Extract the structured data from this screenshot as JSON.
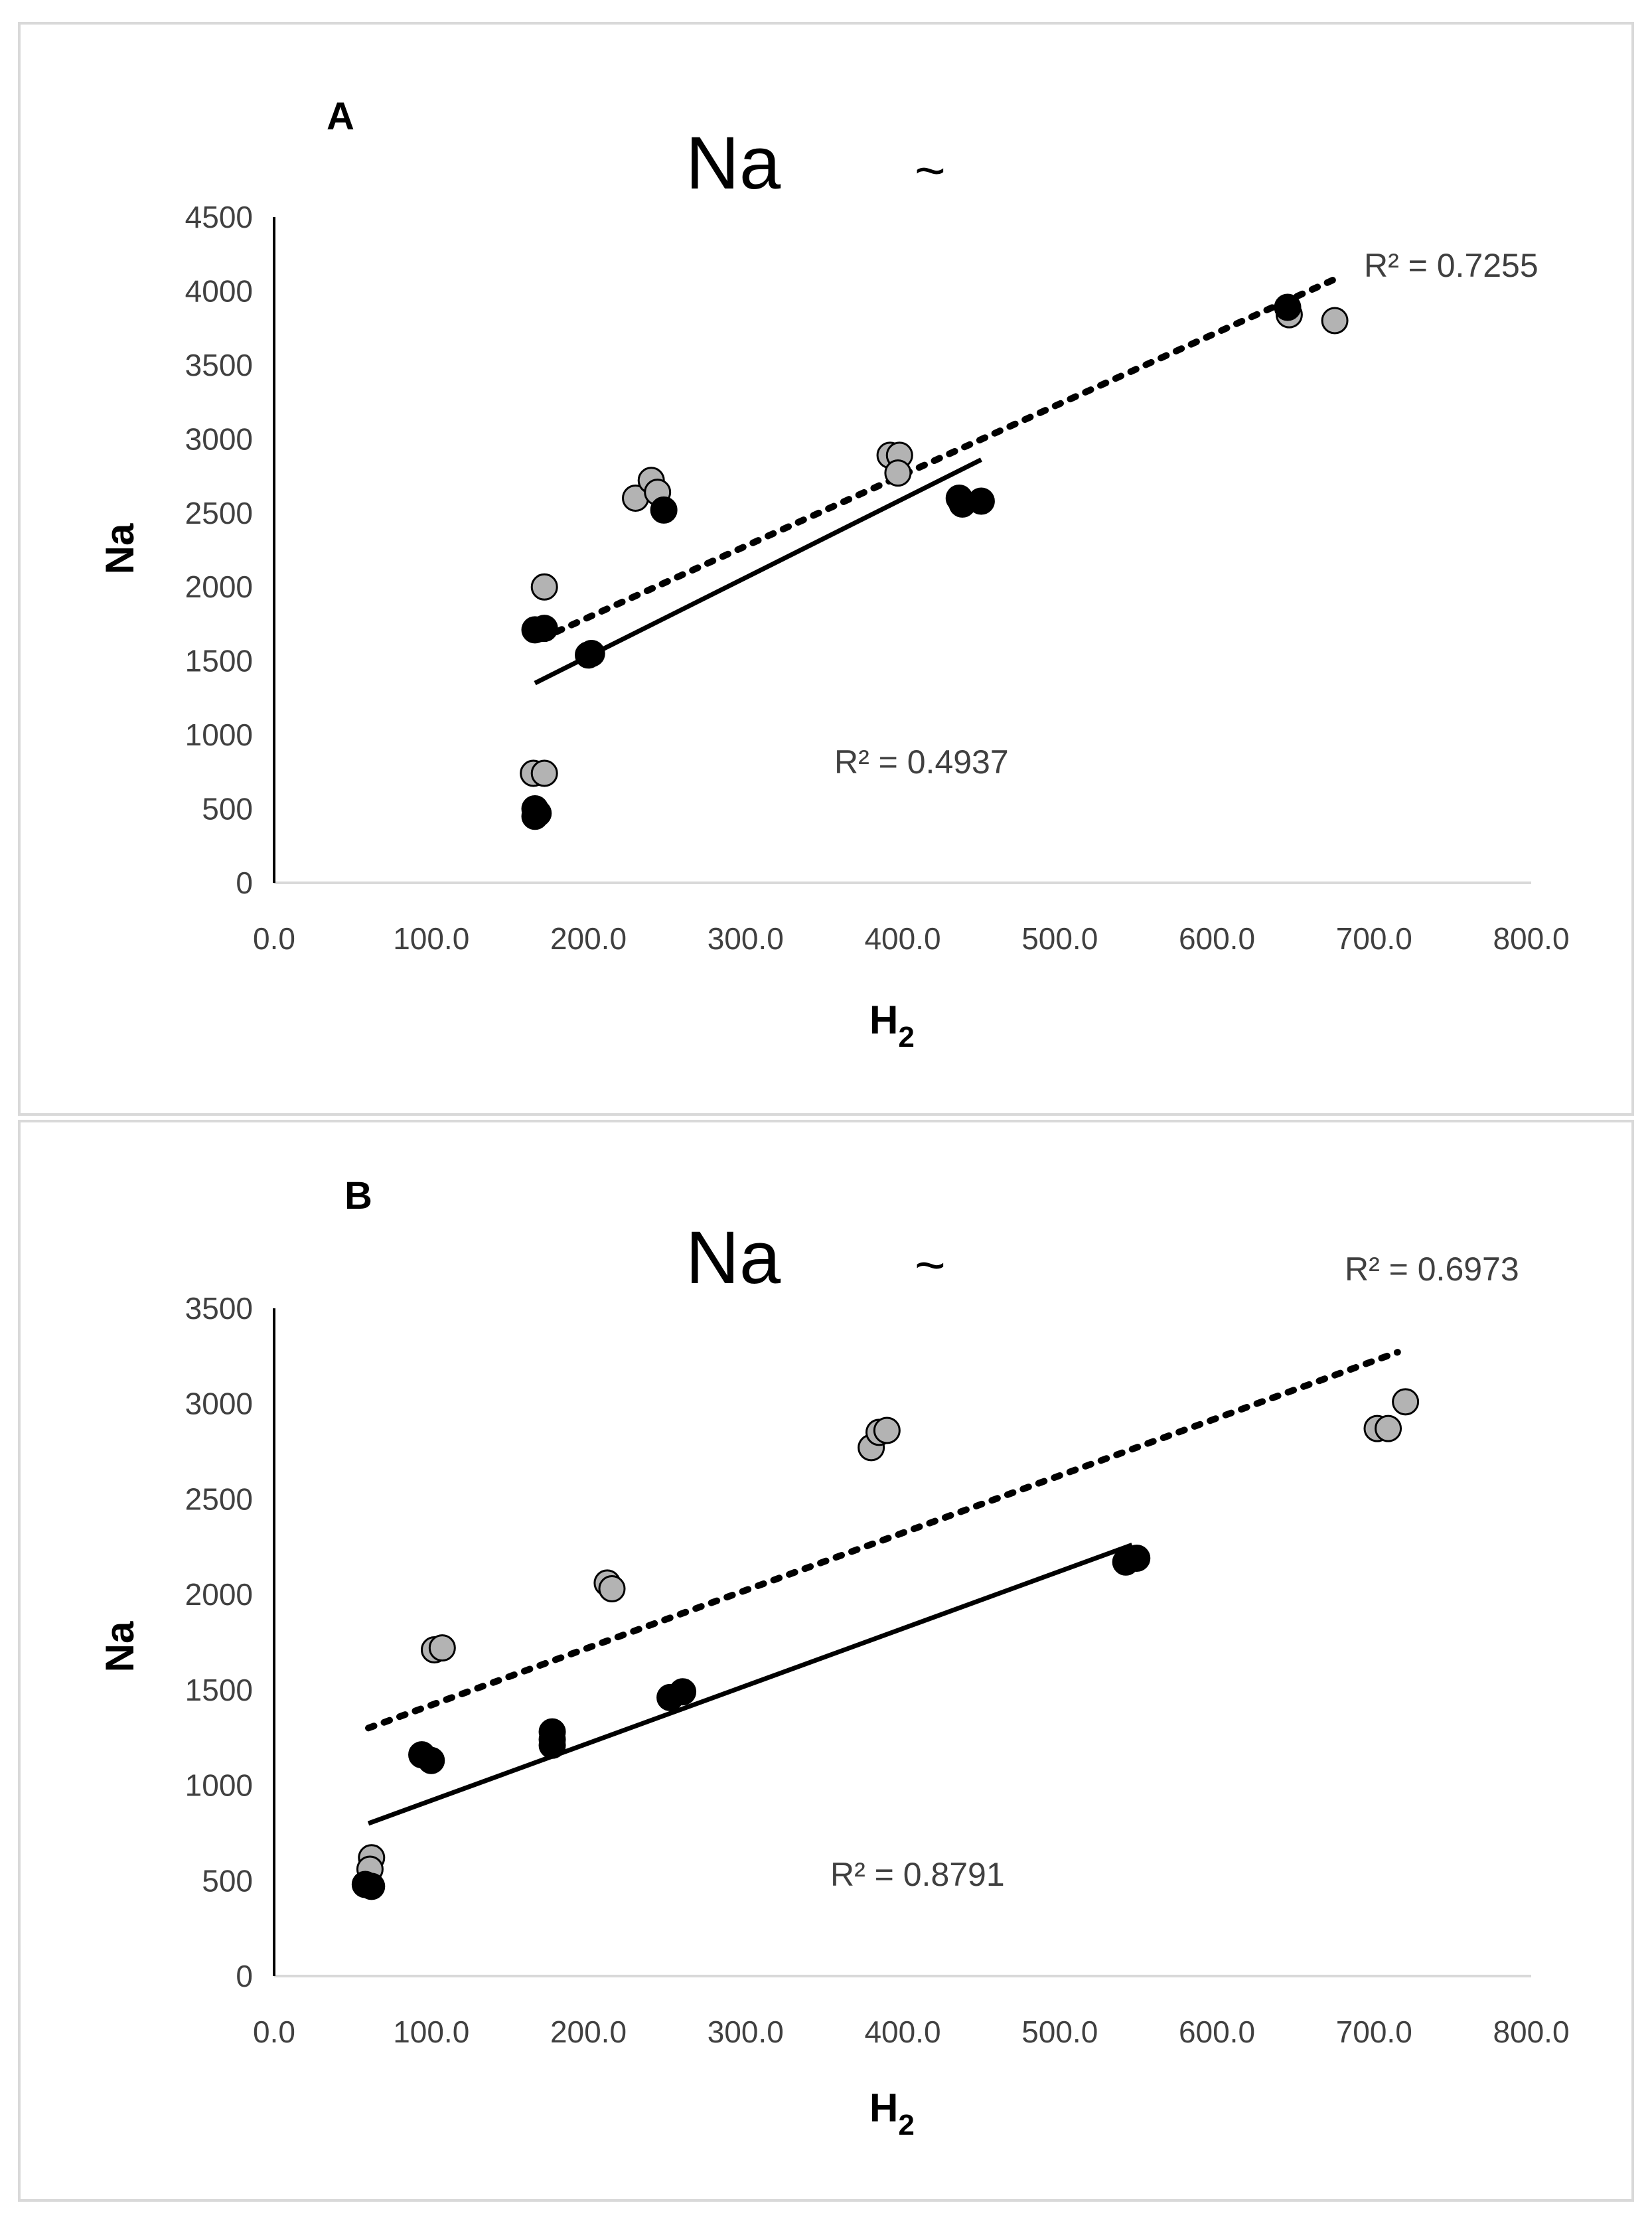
{
  "panels": [
    {
      "label": "A",
      "title": "Na",
      "title_suffix": "~",
      "xlabel": "H2",
      "ylabel": "Na",
      "x_ticks": [
        "0.0",
        "100.0",
        "200.0",
        "300.0",
        "400.0",
        "500.0",
        "600.0",
        "700.0",
        "800.0"
      ],
      "y_ticks": [
        "0",
        "500",
        "1000",
        "1500",
        "2000",
        "2500",
        "3000",
        "3500",
        "4000",
        "4500"
      ],
      "r2_dotted": "R² = 0.7255",
      "r2_solid": "R² = 0.4937"
    },
    {
      "label": "B",
      "title": "Na",
      "title_suffix": "~",
      "xlabel": "H2",
      "ylabel": "Na",
      "x_ticks": [
        "0.0",
        "100.0",
        "200.0",
        "300.0",
        "400.0",
        "500.0",
        "600.0",
        "700.0",
        "800.0"
      ],
      "y_ticks": [
        "0",
        "500",
        "1000",
        "1500",
        "2000",
        "2500",
        "3000",
        "3500"
      ],
      "r2_dotted": "R² = 0.6973",
      "r2_solid": "R² = 0.8791"
    }
  ],
  "chart_data": [
    {
      "type": "scatter",
      "title": "Na ~",
      "panel": "A",
      "xlabel": "H2",
      "ylabel": "Na",
      "xlim": [
        0,
        800
      ],
      "ylim": [
        0,
        4500
      ],
      "grid": false,
      "series": [
        {
          "name": "gray points",
          "color": "#b3b3b3",
          "trendline": "dotted",
          "r2": 0.7255,
          "trend_start": [
            170,
            1650
          ],
          "trend_end": [
            675,
            4080
          ],
          "points": [
            [
              172,
              2000
            ],
            [
              165,
              740
            ],
            [
              172,
              740
            ],
            [
              230,
              2600
            ],
            [
              240,
              2720
            ],
            [
              244,
              2640
            ],
            [
              392,
              2890
            ],
            [
              398,
              2890
            ],
            [
              397,
              2770
            ],
            [
              646,
              3840
            ],
            [
              675,
              3800
            ]
          ]
        },
        {
          "name": "black points",
          "color": "#000000",
          "trendline": "solid",
          "r2": 0.4937,
          "trend_start": [
            166,
            1350
          ],
          "trend_end": [
            450,
            2860
          ],
          "points": [
            [
              166,
              1710
            ],
            [
              172,
              1720
            ],
            [
              200,
              1540
            ],
            [
              202,
              1550
            ],
            [
              248,
              2520
            ],
            [
              436,
              2600
            ],
            [
              438,
              2560
            ],
            [
              450,
              2580
            ],
            [
              645,
              3890
            ],
            [
              166,
              500
            ],
            [
              166,
              450
            ],
            [
              168,
              470
            ]
          ]
        }
      ]
    },
    {
      "type": "scatter",
      "title": "Na ~",
      "panel": "B",
      "xlabel": "H2",
      "ylabel": "Na",
      "xlim": [
        0,
        800
      ],
      "ylim": [
        0,
        3500
      ],
      "grid": false,
      "series": [
        {
          "name": "gray points",
          "color": "#b3b3b3",
          "trendline": "dotted",
          "r2": 0.6973,
          "trend_start": [
            60,
            1300
          ],
          "trend_end": [
            715,
            3270
          ],
          "points": [
            [
              62,
              620
            ],
            [
              61,
              560
            ],
            [
              102,
              1710
            ],
            [
              107,
              1720
            ],
            [
              212,
              2060
            ],
            [
              215,
              2030
            ],
            [
              380,
              2770
            ],
            [
              385,
              2850
            ],
            [
              390,
              2860
            ],
            [
              702,
              2870
            ],
            [
              709,
              2870
            ],
            [
              720,
              3010
            ]
          ]
        },
        {
          "name": "black points",
          "color": "#000000",
          "trendline": "solid",
          "r2": 0.8791,
          "trend_start": [
            60,
            800
          ],
          "trend_end": [
            546,
            2260
          ],
          "points": [
            [
              58,
              480
            ],
            [
              62,
              470
            ],
            [
              94,
              1160
            ],
            [
              100,
              1130
            ],
            [
              177,
              1280
            ],
            [
              177,
              1240
            ],
            [
              177,
              1210
            ],
            [
              252,
              1460
            ],
            [
              260,
              1490
            ],
            [
              542,
              2170
            ],
            [
              549,
              2190
            ]
          ]
        }
      ]
    }
  ]
}
